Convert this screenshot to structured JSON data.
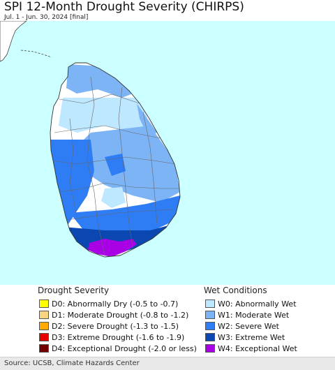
{
  "header": {
    "title": "SPI 12-Month Drought Severity (CHIRPS)",
    "subtitle": "Jul. 1 - Jun. 30, 2024 [final]"
  },
  "colors": {
    "ocean": "#ccffff",
    "land_neutral": "#ffffff",
    "W0": "#bee8ff",
    "W1": "#7cb4f5",
    "W2": "#2e7df5",
    "W3": "#0a47b0",
    "W4": "#a900e6"
  },
  "legend": {
    "drought": {
      "title": "Drought Severity",
      "items": [
        {
          "code": "D0",
          "label": "D0: Abnormally Dry (-0.5 to -0.7)",
          "color": "#ffff00"
        },
        {
          "code": "D1",
          "label": "D1: Moderate Drought (-0.8 to -1.2)",
          "color": "#fcd37f"
        },
        {
          "code": "D2",
          "label": "D2: Severe Drought (-1.3 to -1.5)",
          "color": "#ffaa00"
        },
        {
          "code": "D3",
          "label": "D3: Extreme Drought (-1.6 to -1.9)",
          "color": "#e60000"
        },
        {
          "code": "D4",
          "label": "D4: Exceptional Drought (-2.0 or less)",
          "color": "#730000"
        }
      ]
    },
    "wet": {
      "title": "Wet Conditions",
      "items": [
        {
          "code": "W0",
          "label": "W0: Abnormally Wet",
          "color": "#bee8ff"
        },
        {
          "code": "W1",
          "label": "W1: Moderate Wet",
          "color": "#7cb4f5"
        },
        {
          "code": "W2",
          "label": "W2: Severe Wet",
          "color": "#2e7df5"
        },
        {
          "code": "W3",
          "label": "W3: Extreme Wet",
          "color": "#0a47b0"
        },
        {
          "code": "W4",
          "label": "W4: Exceptional Wet",
          "color": "#a900e6"
        }
      ]
    }
  },
  "footer": {
    "source": "Source: UCSB, Climate Hazards Center"
  }
}
